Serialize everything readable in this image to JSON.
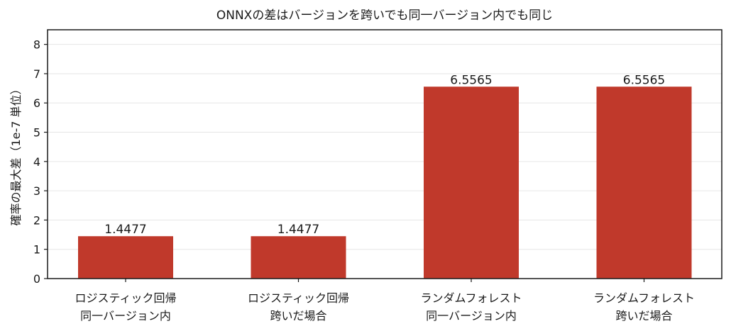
{
  "chart_data": {
    "type": "bar",
    "title": "ONNXの差はバージョンを跨いでも同一バージョン内でも同じ",
    "xlabel": "",
    "ylabel": "確率の最大差（1e-7 単位）",
    "categories": [
      [
        "ロジスティック回帰",
        "同一バージョン内"
      ],
      [
        "ロジスティック回帰",
        "跨いだ場合"
      ],
      [
        "ランダムフォレスト",
        "同一バージョン内"
      ],
      [
        "ランダムフォレスト",
        "跨いだ場合"
      ]
    ],
    "values": [
      1.4477,
      1.4477,
      6.5565,
      6.5565
    ],
    "data_labels": [
      "1.4477",
      "1.4477",
      "6.5565",
      "6.5565"
    ],
    "ylim": [
      0,
      8.5
    ],
    "yticks": [
      0,
      1,
      2,
      3,
      4,
      5,
      6,
      7,
      8
    ],
    "grid": "horizontal",
    "bar_color": "#c0392b",
    "grid_color": "#e6e6e6"
  }
}
